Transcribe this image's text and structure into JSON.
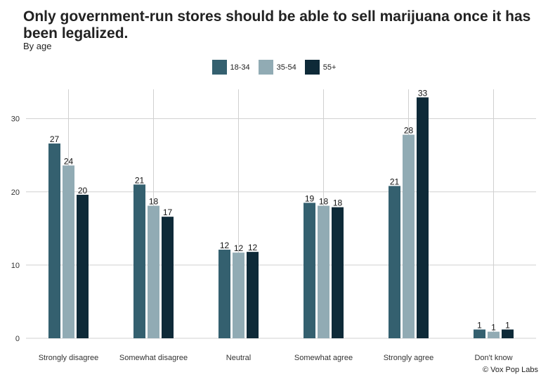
{
  "source": "© Vox Pop Labs",
  "chart_data": {
    "type": "bar",
    "title": "Only government-run stores should be able to sell marijuana once it has been legalized.",
    "subtitle": "By age",
    "xlabel": "",
    "ylabel": "",
    "categories": [
      "Strongly disagree",
      "Somewhat disagree",
      "Neutral",
      "Somewhat agree",
      "Strongly agree",
      "Don't know"
    ],
    "series": [
      {
        "name": "18-34",
        "color": "#34606f",
        "values": [
          26.6,
          21.0,
          12.1,
          18.5,
          20.8,
          1.2
        ],
        "labels": [
          "27",
          "21",
          "12",
          "19",
          "21",
          "1"
        ]
      },
      {
        "name": "35-54",
        "color": "#91abb4",
        "values": [
          23.6,
          18.1,
          11.7,
          18.1,
          27.8,
          0.9
        ],
        "labels": [
          "24",
          "18",
          "12",
          "18",
          "28",
          "1"
        ]
      },
      {
        "name": "55+",
        "color": "#0e2a38",
        "values": [
          19.6,
          16.6,
          11.8,
          17.9,
          32.9,
          1.2
        ],
        "labels": [
          "20",
          "17",
          "12",
          "18",
          "33",
          "1"
        ]
      }
    ],
    "ylim": [
      0,
      34
    ],
    "yticks": [
      0,
      10,
      20,
      30
    ],
    "grid": true,
    "legend_position": "top"
  }
}
